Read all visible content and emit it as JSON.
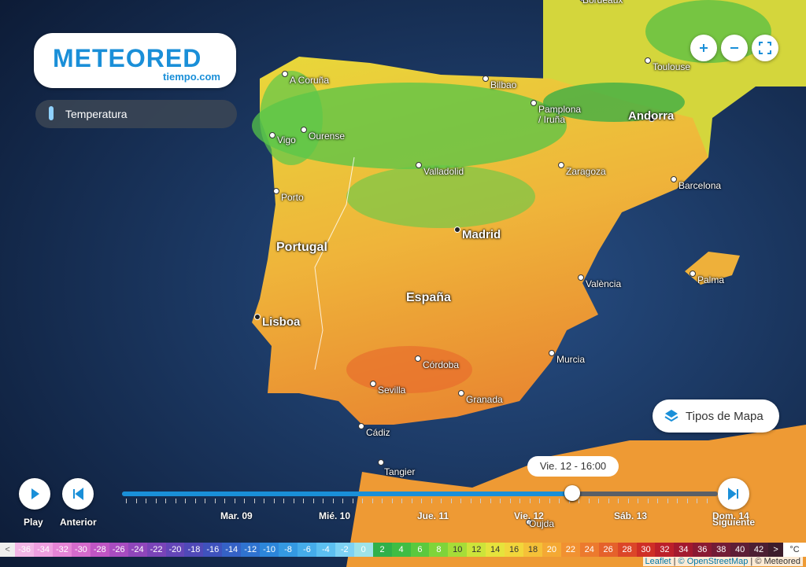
{
  "brand": {
    "name": "METEORED",
    "site": "tiempo.com"
  },
  "layer": {
    "label": "Temperatura"
  },
  "map": {
    "places": [
      {
        "name": "Bordeaux"
      },
      {
        "name": "Toulouse"
      },
      {
        "name": "A Coruña"
      },
      {
        "name": "Bilbao"
      },
      {
        "name": "Pamplona / Iruña"
      },
      {
        "name": "Andorra"
      },
      {
        "name": "Ourense"
      },
      {
        "name": "Vigo"
      },
      {
        "name": "Valladolid"
      },
      {
        "name": "Zaragoza"
      },
      {
        "name": "Barcelona"
      },
      {
        "name": "Porto"
      },
      {
        "name": "Madrid"
      },
      {
        "name": "Portugal"
      },
      {
        "name": "València"
      },
      {
        "name": "Palma"
      },
      {
        "name": "España"
      },
      {
        "name": "Lisboa"
      },
      {
        "name": "Murcia"
      },
      {
        "name": "Córdoba"
      },
      {
        "name": "Sevilla"
      },
      {
        "name": "Granada"
      },
      {
        "name": "Cádiz"
      },
      {
        "name": "Tangier"
      },
      {
        "name": "Oujda"
      }
    ]
  },
  "controls": {
    "map_types": "Tipos de Mapa",
    "play": "Play",
    "previous": "Anterior",
    "next": "Siguiente"
  },
  "timeline": {
    "current": "Vie. 12 - 16:00",
    "days": [
      "Mar. 09",
      "Mié. 10",
      "Jue. 11",
      "Vie. 12",
      "Sáb. 13",
      "Dom. 14"
    ]
  },
  "legend": {
    "below": "<",
    "above": ">",
    "unit": "°C",
    "items": [
      {
        "value": -36,
        "color": "#f2b6e6"
      },
      {
        "value": -34,
        "color": "#ee9fe0"
      },
      {
        "value": -32,
        "color": "#e584d6"
      },
      {
        "value": -30,
        "color": "#d46bcc"
      },
      {
        "value": -28,
        "color": "#c055c4"
      },
      {
        "value": -26,
        "color": "#a84cc0"
      },
      {
        "value": -24,
        "color": "#9046bb"
      },
      {
        "value": -22,
        "color": "#7a44b8"
      },
      {
        "value": -20,
        "color": "#6446b8"
      },
      {
        "value": -18,
        "color": "#5049b8"
      },
      {
        "value": -16,
        "color": "#3f52bd"
      },
      {
        "value": -14,
        "color": "#3562c6"
      },
      {
        "value": -12,
        "color": "#2f73d0"
      },
      {
        "value": -10,
        "color": "#2c86da"
      },
      {
        "value": -8,
        "color": "#3499e2"
      },
      {
        "value": -6,
        "color": "#45acea"
      },
      {
        "value": -4,
        "color": "#5cbff0"
      },
      {
        "value": -2,
        "color": "#7dd2f4"
      },
      {
        "value": 0,
        "color": "#9ee3e8"
      },
      {
        "value": 2,
        "color": "#30b04a"
      },
      {
        "value": 4,
        "color": "#3fbd44"
      },
      {
        "value": 6,
        "color": "#5ac93e"
      },
      {
        "value": 8,
        "color": "#7fd43a"
      },
      {
        "value": 10,
        "color": "#a6dd38"
      },
      {
        "value": 12,
        "color": "#cde43a"
      },
      {
        "value": 14,
        "color": "#e6e33c"
      },
      {
        "value": 16,
        "color": "#f2d63b"
      },
      {
        "value": 18,
        "color": "#f5c138"
      },
      {
        "value": 20,
        "color": "#f4a934"
      },
      {
        "value": 22,
        "color": "#f19131"
      },
      {
        "value": 24,
        "color": "#ec7a2e"
      },
      {
        "value": 26,
        "color": "#e5612b"
      },
      {
        "value": 28,
        "color": "#dc4628"
      },
      {
        "value": 30,
        "color": "#cf2e26"
      },
      {
        "value": 32,
        "color": "#bc1f2a"
      },
      {
        "value": 34,
        "color": "#a3192e"
      },
      {
        "value": 36,
        "color": "#8a1a33"
      },
      {
        "value": 38,
        "color": "#731c36"
      },
      {
        "value": 40,
        "color": "#5e1e36"
      },
      {
        "value": 42,
        "color": "#4c1f33"
      }
    ]
  },
  "attribution": [
    "Leaflet",
    "© OpenStreetMap",
    "© Meteored"
  ]
}
